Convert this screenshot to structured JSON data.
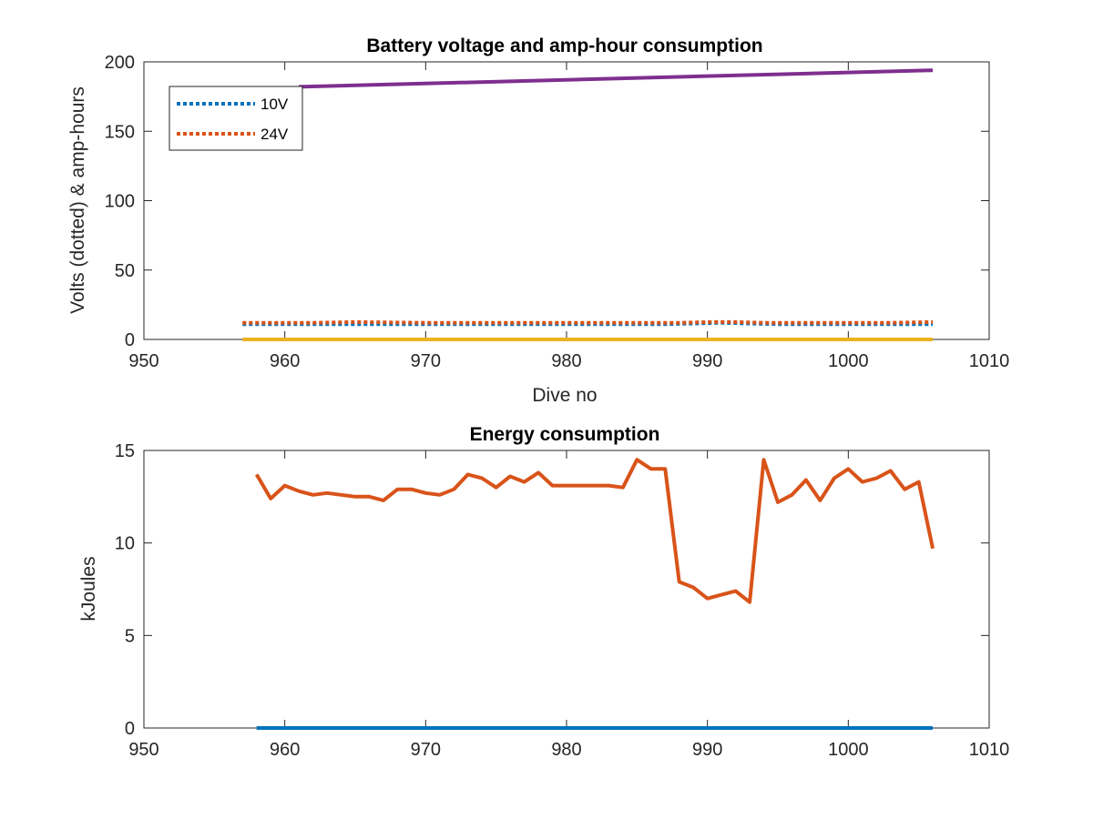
{
  "chart_data": [
    {
      "type": "line",
      "title": "Battery voltage and amp-hour consumption",
      "xlabel": "Dive no",
      "ylabel": "Volts (dotted) & amp-hours",
      "xlim": [
        950,
        1010
      ],
      "ylim": [
        0,
        200
      ],
      "xticks": [
        950,
        960,
        970,
        980,
        990,
        1000,
        1010
      ],
      "yticks": [
        0,
        50,
        100,
        150,
        200
      ],
      "legend": {
        "placement": "top-left",
        "entries": [
          "10V",
          "24V"
        ]
      },
      "grid": false,
      "series": [
        {
          "name": "10V",
          "style": "dotted",
          "color": "#0072BD",
          "x": [
            957,
            985,
            987,
            989,
            991,
            993,
            995,
            1006
          ],
          "y": [
            11,
            11,
            11,
            11.5,
            12,
            11.5,
            11,
            11
          ]
        },
        {
          "name": "24V",
          "style": "dotted",
          "color": "#D95319",
          "x": [
            957,
            962,
            965,
            970,
            975,
            980,
            985,
            988,
            990,
            992,
            994,
            1000,
            1003,
            1006
          ],
          "y": [
            12,
            12,
            12.5,
            12,
            12,
            12,
            12,
            12,
            12.5,
            12.5,
            12,
            12,
            12,
            12.5
          ]
        },
        {
          "style": "solid",
          "color": "#EDB120",
          "x": [
            957,
            1006
          ],
          "y": [
            0,
            0
          ]
        },
        {
          "style": "solid",
          "color": "#7E2F8E",
          "x": [
            961,
            1006
          ],
          "y": [
            182,
            194
          ]
        }
      ]
    },
    {
      "type": "line",
      "title": "Energy consumption",
      "xlabel": "",
      "ylabel": "kJoules",
      "xlim": [
        950,
        1010
      ],
      "ylim": [
        0,
        15
      ],
      "xticks": [
        950,
        960,
        970,
        980,
        990,
        1000,
        1010
      ],
      "yticks": [
        0,
        5,
        10,
        15
      ],
      "grid": false,
      "series": [
        {
          "style": "solid",
          "color": "#0072BD",
          "x": [
            958,
            1006
          ],
          "y": [
            0,
            0
          ]
        },
        {
          "style": "solid",
          "color": "#D95319",
          "x": [
            958,
            959,
            960,
            961,
            962,
            963,
            964,
            965,
            966,
            967,
            968,
            969,
            970,
            971,
            972,
            973,
            974,
            975,
            976,
            977,
            978,
            979,
            980,
            981,
            982,
            983,
            984,
            985,
            986,
            987,
            988,
            989,
            990,
            991,
            992,
            993,
            994,
            995,
            996,
            997,
            998,
            999,
            1000,
            1001,
            1002,
            1003,
            1004,
            1005,
            1006
          ],
          "y": [
            13.7,
            12.4,
            13.1,
            12.8,
            12.6,
            12.7,
            12.6,
            12.5,
            12.5,
            12.3,
            12.9,
            12.9,
            12.7,
            12.6,
            12.9,
            13.7,
            13.5,
            13.0,
            13.6,
            13.3,
            13.8,
            13.1,
            13.1,
            13.1,
            13.1,
            13.1,
            13.0,
            14.5,
            14.0,
            14.0,
            7.9,
            7.6,
            7.0,
            7.2,
            7.4,
            6.8,
            14.5,
            12.2,
            12.6,
            13.4,
            12.3,
            13.5,
            14.0,
            13.3,
            13.5,
            13.9,
            12.9,
            13.3,
            9.7
          ]
        }
      ]
    }
  ]
}
